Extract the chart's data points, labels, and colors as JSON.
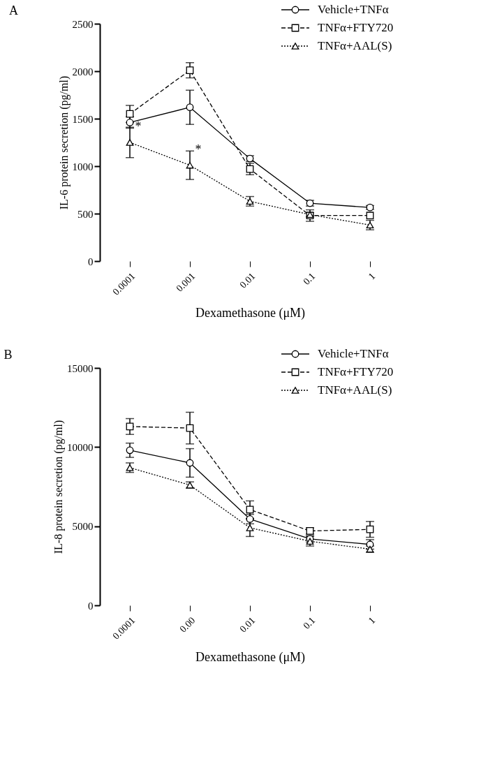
{
  "chart_data": [
    {
      "type": "line",
      "title": "A",
      "xlabel": "Dexamethasone (μM)",
      "ylabel": "IL-6 protein secretion (pg/ml)",
      "categories": [
        "0.0001",
        "0.001",
        "0.01",
        "0.1",
        "1"
      ],
      "ylim": [
        0,
        2500
      ],
      "yticks": [
        0,
        500,
        1000,
        1500,
        2000,
        2500
      ],
      "grid": false,
      "legend": "top right",
      "series": [
        {
          "name": "Vehicle+TNFα",
          "color": "#000000",
          "marker": "circle",
          "line_style": "solid",
          "values": [
            1460,
            1620,
            1080,
            610,
            565
          ],
          "errors": [
            60,
            180,
            30,
            30,
            20
          ]
        },
        {
          "name": "TNFα+FTY720",
          "color": "#000000",
          "marker": "square",
          "line_style": "dashed",
          "values": [
            1550,
            2010,
            970,
            480,
            480
          ],
          "errors": [
            90,
            80,
            60,
            60,
            null
          ]
        },
        {
          "name": "TNFα+AAL(S)",
          "color": "#000000",
          "marker": "triangle",
          "line_style": "dotted",
          "values": [
            1250,
            1010,
            630,
            490,
            380
          ],
          "errors": [
            160,
            150,
            50,
            20,
            50
          ]
        }
      ],
      "annotations": [
        {
          "text": "*",
          "x": "0.0001",
          "y": 1250
        },
        {
          "text": "*",
          "x": "0.001",
          "y": 1010
        }
      ]
    },
    {
      "type": "line",
      "title": "B",
      "xlabel": "Dexamethasone (μM)",
      "ylabel": "IL-8 protein secretion (pg/ml)",
      "categories": [
        "0.0001",
        "0.00",
        "0.01",
        "0.1",
        "1"
      ],
      "ylim": [
        0,
        15000
      ],
      "yticks": [
        0,
        5000,
        10000,
        15000
      ],
      "grid": false,
      "legend": "top right",
      "series": [
        {
          "name": "Vehicle+TNFα",
          "color": "#000000",
          "marker": "circle",
          "line_style": "solid",
          "values": [
            9800,
            9000,
            5450,
            4200,
            3850
          ],
          "errors": [
            450,
            900,
            300,
            200,
            300
          ]
        },
        {
          "name": "TNFα+FTY720",
          "color": "#000000",
          "marker": "square",
          "line_style": "dashed",
          "values": [
            11300,
            11200,
            6050,
            4700,
            4800
          ],
          "errors": [
            500,
            1000,
            550,
            200,
            500
          ]
        },
        {
          "name": "TNFα+AAL(S)",
          "color": "#000000",
          "marker": "triangle",
          "line_style": "dotted",
          "values": [
            8700,
            7600,
            4900,
            4050,
            3550
          ],
          "errors": [
            300,
            200,
            550,
            300,
            200
          ]
        }
      ]
    }
  ]
}
